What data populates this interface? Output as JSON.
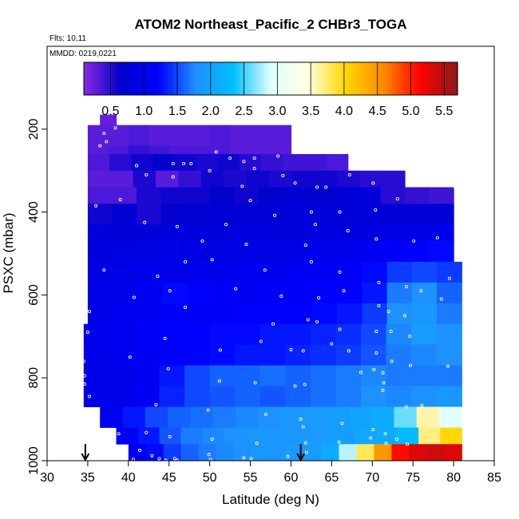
{
  "chart_data": {
    "type": "heatmap",
    "title": "ATOM2 Northeast_Pacific_2 CHBr3_TOGA",
    "flights_label": "Flts: 10,11",
    "mmdd_label": "MMDD: 0219,0221",
    "xlabel": "Latitude (deg N)",
    "ylabel": "PSXC (mbar)",
    "xlim": [
      30,
      85
    ],
    "ylim": [
      1000,
      0
    ],
    "x_ticks": [
      "30",
      "35",
      "40",
      "45",
      "50",
      "55",
      "60",
      "65",
      "70",
      "75",
      "80",
      "85"
    ],
    "y_ticks": [
      "200",
      "400",
      "600",
      "800",
      "1000"
    ],
    "colorbar": {
      "range": [
        0.1,
        5.7
      ],
      "ticks": [
        "0.5",
        "1.0",
        "1.5",
        "2.0",
        "2.5",
        "3.0",
        "3.5",
        "4.0",
        "4.5",
        "5.0",
        "5.5"
      ],
      "colors": [
        "#8a2be2",
        "#0000cd",
        "#0000ff",
        "#1e90ff",
        "#00bfff",
        "#e0ffff",
        "#ffffe0",
        "#ffd700",
        "#ff8c00",
        "#ff0000",
        "#8b1a1a"
      ]
    },
    "arrows_latitude": [
      34.7,
      61.2
    ],
    "rows": [
      {
        "p_top": 165,
        "p_bot": 190,
        "lat_start": 36.5,
        "lat_end": 38.5,
        "values": [
          0.25
        ]
      },
      {
        "p_top": 190,
        "p_bot": 240,
        "lat_start": 35.0,
        "lat_end": 60.0,
        "values": [
          0.3,
          0.3,
          0.35,
          0.3,
          0.3,
          0.3,
          0.35,
          0.3,
          0.3,
          0.3
        ]
      },
      {
        "p_top": 240,
        "p_bot": 260,
        "lat_start": 35.0,
        "lat_end": 60.0,
        "values": [
          0.3,
          0.35,
          0.45,
          0.4,
          0.35,
          0.35,
          0.35,
          0.3,
          0.3,
          0.3
        ]
      },
      {
        "p_top": 260,
        "p_bot": 300,
        "lat_start": 35.0,
        "lat_end": 67.0,
        "values": [
          0.35,
          0.5,
          0.6,
          0.7,
          0.6,
          0.55,
          0.6,
          0.5,
          0.45,
          0.4,
          0.4,
          0.35
        ]
      },
      {
        "p_top": 300,
        "p_bot": 340,
        "lat_start": 35.0,
        "lat_end": 74.0,
        "values": [
          0.3,
          0.3,
          0.55,
          0.3,
          0.45,
          0.6,
          0.55,
          0.6,
          0.55,
          0.6,
          0.6,
          0.55,
          0.5,
          0.5
        ]
      },
      {
        "p_top": 340,
        "p_bot": 380,
        "lat_start": 35.0,
        "lat_end": 80.0,
        "values": [
          0.35,
          0.35,
          0.55,
          0.6,
          0.6,
          0.65,
          0.6,
          0.65,
          0.7,
          0.7,
          0.75,
          0.8,
          0.5,
          0.45,
          0.4
        ]
      },
      {
        "p_top": 380,
        "p_bot": 430,
        "lat_start": 35.0,
        "lat_end": 80.0,
        "values": [
          0.6,
          0.7,
          0.55,
          0.65,
          0.7,
          0.75,
          0.75,
          0.75,
          0.8,
          0.8,
          0.8,
          0.8,
          0.75,
          0.75,
          0.75
        ]
      },
      {
        "p_top": 430,
        "p_bot": 470,
        "lat_start": 35.0,
        "lat_end": 80.0,
        "values": [
          0.8,
          0.75,
          0.8,
          0.85,
          0.85,
          0.8,
          0.85,
          0.85,
          0.8,
          0.85,
          0.85,
          0.85,
          0.9,
          0.95,
          1.0
        ]
      },
      {
        "p_top": 470,
        "p_bot": 520,
        "lat_start": 35.0,
        "lat_end": 80.0,
        "values": [
          0.85,
          0.9,
          0.9,
          0.95,
          0.9,
          0.9,
          0.95,
          0.9,
          0.95,
          1.0,
          1.0,
          1.05,
          1.15,
          1.2,
          1.25
        ]
      },
      {
        "p_top": 520,
        "p_bot": 570,
        "lat_start": 35.0,
        "lat_end": 81.0,
        "values": [
          0.9,
          0.95,
          1.0,
          0.95,
          1.0,
          1.0,
          1.05,
          1.05,
          1.1,
          1.1,
          1.15,
          1.25,
          1.45,
          1.5,
          1.45
        ]
      },
      {
        "p_top": 570,
        "p_bot": 620,
        "lat_start": 35.0,
        "lat_end": 81.0,
        "values": [
          0.95,
          1.0,
          1.1,
          1.25,
          1.2,
          1.15,
          1.1,
          1.15,
          1.15,
          1.2,
          1.2,
          1.3,
          1.7,
          1.8,
          1.6
        ]
      },
      {
        "p_top": 620,
        "p_bot": 670,
        "lat_start": 35.0,
        "lat_end": 81.0,
        "values": [
          1.0,
          1.05,
          1.1,
          1.15,
          1.1,
          1.15,
          1.2,
          1.2,
          1.2,
          1.25,
          1.3,
          1.45,
          1.8,
          1.85,
          1.7
        ]
      },
      {
        "p_top": 670,
        "p_bot": 720,
        "lat_start": 34.5,
        "lat_end": 81.0,
        "values": [
          1.0,
          1.05,
          1.15,
          1.2,
          1.2,
          1.25,
          1.25,
          1.3,
          1.3,
          1.35,
          1.4,
          1.5,
          1.75,
          1.9,
          1.8
        ]
      },
      {
        "p_top": 720,
        "p_bot": 770,
        "lat_start": 34.5,
        "lat_end": 81.0,
        "values": [
          1.0,
          1.05,
          1.1,
          1.15,
          1.2,
          1.25,
          1.3,
          1.3,
          1.35,
          1.4,
          1.45,
          1.55,
          1.7,
          1.75,
          1.8
        ]
      },
      {
        "p_top": 770,
        "p_bot": 820,
        "lat_start": 34.5,
        "lat_end": 81.0,
        "values": [
          0.95,
          1.0,
          1.05,
          1.3,
          1.5,
          1.6,
          1.6,
          1.65,
          1.6,
          1.65,
          1.7,
          1.75,
          1.7,
          1.7,
          1.7
        ]
      },
      {
        "p_top": 820,
        "p_bot": 870,
        "lat_start": 34.5,
        "lat_end": 81.0,
        "values": [
          0.95,
          1.0,
          1.1,
          1.35,
          1.5,
          1.55,
          1.6,
          1.55,
          1.6,
          1.65,
          1.7,
          1.8,
          1.75,
          1.8,
          1.85
        ]
      },
      {
        "p_top": 870,
        "p_bot": 920,
        "lat_start": 36.5,
        "lat_end": 81.0,
        "values": [
          1.05,
          1.3,
          1.5,
          1.6,
          1.65,
          1.7,
          1.75,
          1.8,
          1.85,
          1.9,
          1.95,
          2.0,
          2.1,
          2.6,
          3.6,
          2.9
        ]
      },
      {
        "p_top": 920,
        "p_bot": 960,
        "lat_start": 38.5,
        "lat_end": 81.0,
        "values": [
          1.1,
          1.3,
          1.55,
          1.7,
          1.75,
          1.8,
          1.85,
          1.85,
          1.85,
          1.9,
          1.95,
          2.05,
          2.1,
          2.3,
          3.7,
          4.0
        ]
      },
      {
        "p_top": 960,
        "p_bot": 1000,
        "lat_start": 40.0,
        "lat_end": 81.0,
        "values": [
          1.05,
          1.25,
          1.45,
          1.6,
          1.7,
          1.75,
          1.8,
          1.85,
          1.85,
          1.9,
          1.9,
          2.1,
          2.8,
          3.8,
          4.5,
          5.1,
          5.3,
          5.4,
          5.3
        ]
      }
    ],
    "points": [
      [
        37.0,
        210
      ],
      [
        37.3,
        230
      ],
      [
        38.4,
        197
      ],
      [
        36.5,
        240
      ],
      [
        55.5,
        270
      ],
      [
        58.4,
        265
      ],
      [
        45.5,
        283
      ],
      [
        46.8,
        283
      ],
      [
        47.7,
        283
      ],
      [
        50.8,
        255
      ],
      [
        52.5,
        270
      ],
      [
        54.2,
        278
      ],
      [
        55.5,
        295
      ],
      [
        42.2,
        310
      ],
      [
        45.5,
        315
      ],
      [
        41.0,
        288
      ],
      [
        50.0,
        300
      ],
      [
        54.0,
        338
      ],
      [
        59.0,
        312
      ],
      [
        60.5,
        330
      ],
      [
        63.2,
        340
      ],
      [
        64.3,
        340
      ],
      [
        67.2,
        310
      ],
      [
        70.1,
        330
      ],
      [
        73.1,
        368
      ],
      [
        80.2,
        340
      ],
      [
        55.0,
        372
      ],
      [
        62.5,
        400
      ],
      [
        66.0,
        400
      ],
      [
        70.4,
        395
      ],
      [
        36.0,
        385
      ],
      [
        39.0,
        370
      ],
      [
        42.0,
        425
      ],
      [
        46.0,
        435
      ],
      [
        52.0,
        430
      ],
      [
        58.0,
        408
      ],
      [
        63.0,
        430
      ],
      [
        67.0,
        445
      ],
      [
        70.5,
        465
      ],
      [
        75.1,
        470
      ],
      [
        78.0,
        462
      ],
      [
        49.1,
        470
      ],
      [
        54.5,
        478
      ],
      [
        61.8,
        480
      ],
      [
        43.6,
        555
      ],
      [
        47.0,
        520
      ],
      [
        50.3,
        515
      ],
      [
        37.0,
        540
      ],
      [
        56.8,
        540
      ],
      [
        62.5,
        520
      ],
      [
        66.0,
        545
      ],
      [
        70.8,
        570
      ],
      [
        74.2,
        580
      ],
      [
        76.0,
        590
      ],
      [
        79.5,
        560
      ],
      [
        40.7,
        606
      ],
      [
        45.1,
        590
      ],
      [
        53.2,
        585
      ],
      [
        58.8,
        603
      ],
      [
        63.4,
        607
      ],
      [
        66.5,
        590
      ],
      [
        70.8,
        626
      ],
      [
        72.0,
        640
      ],
      [
        74.0,
        650
      ],
      [
        78.5,
        610
      ],
      [
        35.2,
        640
      ],
      [
        47.0,
        630
      ],
      [
        57.8,
        670
      ],
      [
        62.1,
        660
      ],
      [
        63.2,
        665
      ],
      [
        66.0,
        683
      ],
      [
        70.5,
        688
      ],
      [
        72.3,
        688
      ],
      [
        74.6,
        700
      ],
      [
        35.0,
        690
      ],
      [
        44.5,
        705
      ],
      [
        51.3,
        733
      ],
      [
        56.3,
        712
      ],
      [
        60.0,
        732
      ],
      [
        61.5,
        735
      ],
      [
        65.0,
        718
      ],
      [
        67.1,
        735
      ],
      [
        70.5,
        740
      ],
      [
        72.4,
        760
      ],
      [
        74.7,
        770
      ],
      [
        79.3,
        772
      ],
      [
        34.5,
        760
      ],
      [
        34.6,
        795
      ],
      [
        34.6,
        815
      ],
      [
        40.2,
        750
      ],
      [
        44.9,
        778
      ],
      [
        51.2,
        808
      ],
      [
        55.6,
        812
      ],
      [
        60.5,
        820
      ],
      [
        61.7,
        816
      ],
      [
        68.6,
        787
      ],
      [
        70.2,
        780
      ],
      [
        71.3,
        788
      ],
      [
        71.4,
        812
      ],
      [
        71.3,
        830
      ],
      [
        74.2,
        870
      ],
      [
        76.1,
        867
      ],
      [
        35.2,
        845
      ],
      [
        43.4,
        865
      ],
      [
        49.8,
        878
      ],
      [
        56.9,
        888
      ],
      [
        61.2,
        900
      ],
      [
        61.5,
        918
      ],
      [
        66.3,
        910
      ],
      [
        70.1,
        925
      ],
      [
        71.6,
        935
      ],
      [
        79.1,
        915
      ],
      [
        38.8,
        935
      ],
      [
        42.2,
        932
      ],
      [
        45.1,
        942
      ],
      [
        50.3,
        948
      ],
      [
        55.8,
        958
      ],
      [
        61.8,
        957
      ],
      [
        65.9,
        955
      ],
      [
        69.8,
        945
      ],
      [
        71.7,
        958
      ],
      [
        73.0,
        948
      ],
      [
        74.3,
        960
      ],
      [
        41.4,
        975
      ],
      [
        42.9,
        988
      ],
      [
        45.7,
        995
      ],
      [
        49.9,
        985
      ],
      [
        54.2,
        993
      ],
      [
        59.6,
        990
      ],
      [
        61.9,
        980
      ],
      [
        43.8,
        995
      ],
      [
        50.1,
        997
      ],
      [
        55.1,
        995
      ],
      [
        40.6,
        997
      ],
      [
        44.6,
        999
      ],
      [
        46.0,
        999
      ]
    ]
  }
}
